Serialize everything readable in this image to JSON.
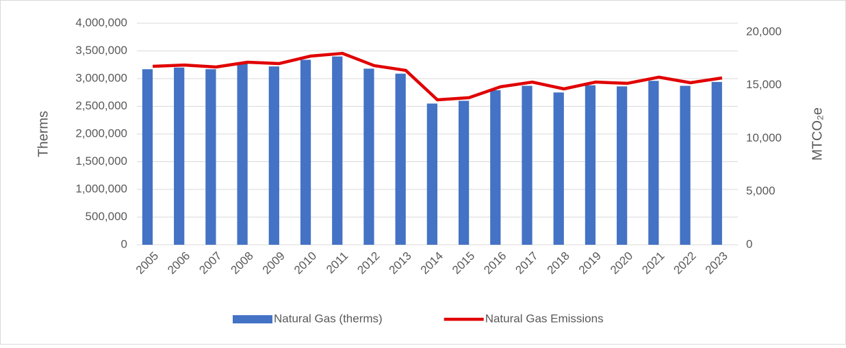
{
  "chart_data": {
    "type": "bar-line",
    "categories": [
      "2005",
      "2006",
      "2007",
      "2008",
      "2009",
      "2010",
      "2011",
      "2012",
      "2013",
      "2014",
      "2015",
      "2016",
      "2017",
      "2018",
      "2019",
      "2020",
      "2021",
      "2022",
      "2023"
    ],
    "ylabel": "Therms",
    "y2label": "MTCO₂e",
    "ylim": [
      0,
      4000000
    ],
    "yticks": [
      0,
      {
        "value": 500000,
        "label": "500,000"
      },
      {
        "value": 1000000,
        "label": "1,000,000"
      },
      {
        "value": 1500000,
        "label": "1,500,000"
      },
      {
        "value": 2000000,
        "label": "2,000,000"
      },
      {
        "value": 2500000,
        "label": "2,500,000"
      },
      {
        "value": 3000000,
        "label": "3,000,000"
      },
      {
        "value": 3500000,
        "label": "3,500,000"
      },
      {
        "value": 4000000,
        "label": "4,000,000"
      }
    ],
    "y2lim": [
      0,
      20833
    ],
    "y2ticks": [
      0,
      {
        "value": 5000,
        "label": "5,000"
      },
      {
        "value": 10000,
        "label": "10,000"
      },
      {
        "value": 15000,
        "label": "15,000"
      },
      {
        "value": 20000,
        "label": "20,000"
      }
    ],
    "grid": true,
    "legend": "bottom",
    "series": [
      {
        "name": "Natural Gas (therms)",
        "type": "bar",
        "color": "#4472c4",
        "values": [
          3170000,
          3200000,
          3170000,
          3280000,
          3220000,
          3340000,
          3400000,
          3180000,
          3090000,
          2550000,
          2600000,
          2790000,
          2870000,
          2750000,
          2880000,
          2860000,
          2960000,
          2870000,
          2940000
        ]
      },
      {
        "name": "Natural Gas Emissions",
        "type": "line",
        "axis": "y2",
        "color": "#e00000",
        "values": [
          16785,
          16900,
          16720,
          17170,
          17040,
          17750,
          18000,
          16850,
          16400,
          13630,
          13830,
          14860,
          15300,
          14660,
          15300,
          15180,
          15760,
          15240,
          15690
        ]
      }
    ]
  }
}
